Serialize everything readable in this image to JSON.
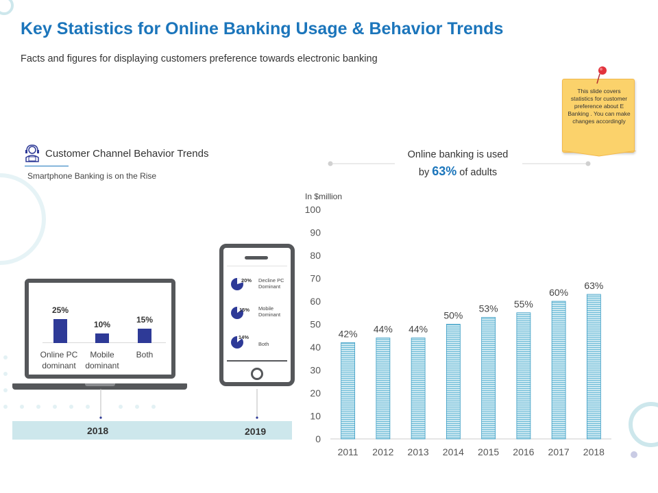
{
  "title": "Key Statistics for Online Banking Usage & Behavior Trends",
  "subtitle": "Facts and figures for displaying customers preference towards electronic banking",
  "sticky_note": "This slide covers statistics for customer preference about E Banking . You can make changes accordingly",
  "section": {
    "label": "Customer Channel Behavior Trends",
    "sub": "Smartphone Banking is on the Rise"
  },
  "callout": {
    "line1": "Online banking is used",
    "prefix": "by",
    "value": "63%",
    "suffix": "of adults"
  },
  "colors": {
    "accent": "#1b75bb",
    "bar_fill": "#bfe3ee",
    "bar_stroke": "#3a9cc4",
    "laptop_bar": "#2e3a97",
    "device": "#55575a",
    "timeline": "#cde7ec",
    "note": "#fbd26b"
  },
  "laptop": {
    "bars": [
      {
        "value": "25%",
        "label_line1": "Online PC",
        "label_line2": "dominant",
        "v": 25
      },
      {
        "value": "10%",
        "label_line1": "Mobile",
        "label_line2": "dominant",
        "v": 10
      },
      {
        "value": "15%",
        "label_line1": "Both",
        "label_line2": "",
        "v": 15
      }
    ]
  },
  "phone": {
    "items": [
      {
        "pct": "20%",
        "label": "Decline PC Dominant"
      },
      {
        "pct": "15%",
        "label": "Mobile Dominant"
      },
      {
        "pct": "14%",
        "label": "Both"
      }
    ]
  },
  "timeline": {
    "year_left": "2018",
    "year_right": "2019"
  },
  "chart_data": {
    "type": "bar",
    "ylabel": "In $million",
    "categories": [
      "2011",
      "2012",
      "2013",
      "2014",
      "2015",
      "2016",
      "2017",
      "2018"
    ],
    "values": [
      42,
      44,
      44,
      50,
      53,
      55,
      60,
      63
    ],
    "data_labels": [
      "42%",
      "44%",
      "44%",
      "50%",
      "53%",
      "55%",
      "60%",
      "63%"
    ],
    "ylim": [
      0,
      100
    ],
    "yticks": [
      0,
      10,
      20,
      30,
      40,
      50,
      60,
      70,
      80,
      90,
      100
    ],
    "grid": false,
    "legend": "none"
  }
}
